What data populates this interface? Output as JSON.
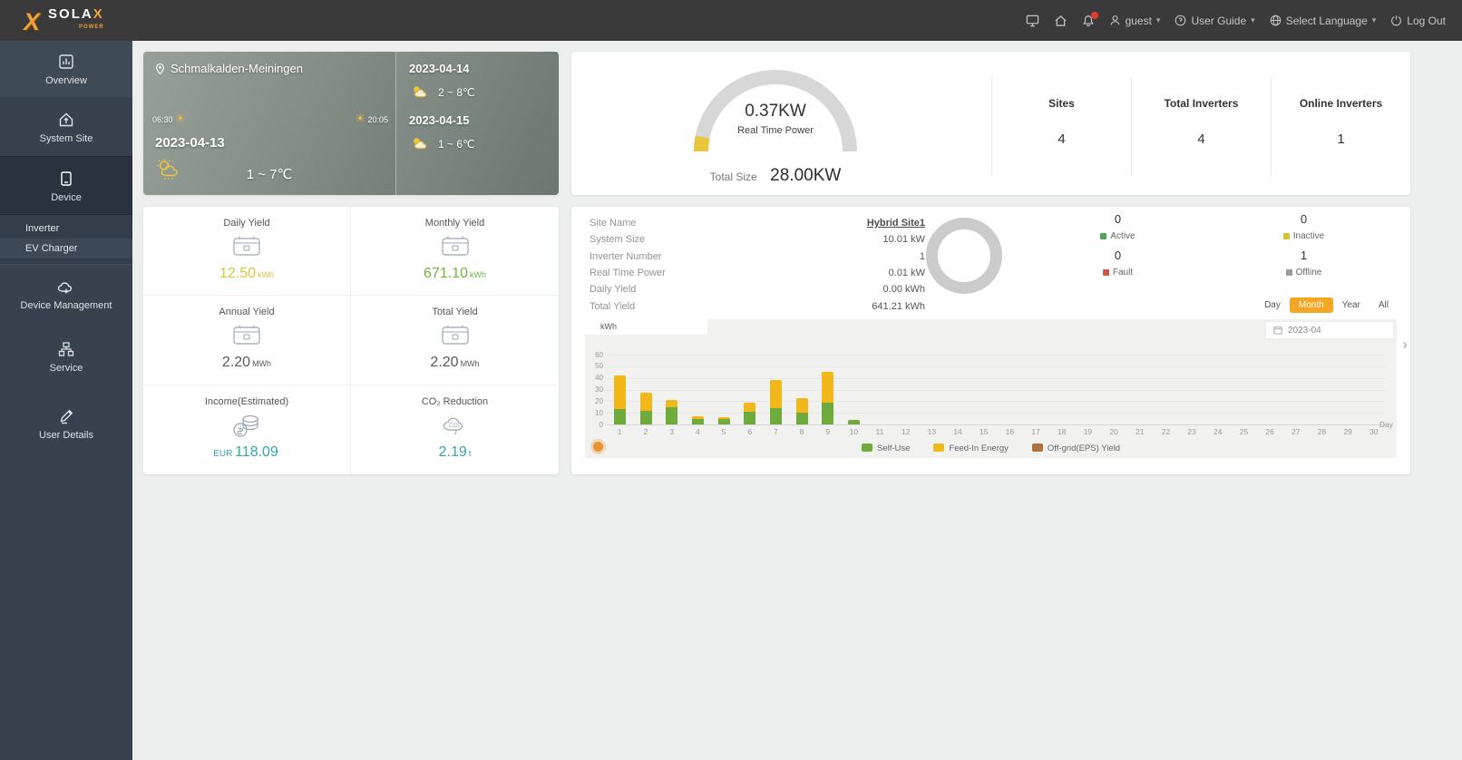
{
  "navbar": {
    "logo_main": "SOLA",
    "logo_x": "X",
    "logo_sub": "POWER",
    "username": "guest",
    "user_guide": "User Guide",
    "select_language": "Select Language",
    "logout": "Log Out"
  },
  "sidebar": {
    "items": [
      {
        "id": "overview",
        "label": "Overview",
        "icon": "overview-icon"
      },
      {
        "id": "system-site",
        "label": "System Site",
        "icon": "site-icon"
      },
      {
        "id": "device",
        "label": "Device",
        "icon": "device-icon",
        "active": true,
        "children": [
          {
            "id": "inverter",
            "label": "Inverter"
          },
          {
            "id": "ev-charger",
            "label": "EV Charger",
            "selected": true
          }
        ]
      },
      {
        "id": "device-management",
        "label": "Device Management",
        "icon": "device-management-icon"
      },
      {
        "id": "service",
        "label": "Service",
        "icon": "service-icon"
      },
      {
        "id": "user-details",
        "label": "User Details",
        "icon": "user-details-icon"
      }
    ]
  },
  "weather": {
    "location": "Schmalkalden-Meiningen",
    "sunrise": "06:30",
    "sunset": "20:05",
    "date": "2023-04-13",
    "temperature": "1 ~ 7℃",
    "forecast": [
      {
        "date": "2023-04-14",
        "temperature": "2 ~ 8℃"
      },
      {
        "date": "2023-04-15",
        "temperature": "1 ~ 6℃"
      }
    ]
  },
  "power_card": {
    "real_time_power": "0.37KW",
    "real_time_power_label": "Real Time Power",
    "total_size_label": "Total Size",
    "total_size": "28.00KW",
    "stats": [
      {
        "label": "Sites",
        "value": "4"
      },
      {
        "label": "Total Inverters",
        "value": "4"
      },
      {
        "label": "Online Inverters",
        "value": "1"
      }
    ]
  },
  "yield_cards": [
    {
      "label": "Daily Yield",
      "value": "12.50",
      "unit": "kWh",
      "color": "#ddc43c",
      "icon": "yield-icon"
    },
    {
      "label": "Monthly Yield",
      "value": "671.10",
      "unit": "kWh",
      "color": "#72b43e",
      "icon": "yield-icon"
    },
    {
      "label": "Annual Yield",
      "value": "2.20",
      "unit": "MWh",
      "color": "#5a5a5a",
      "icon": "yield-icon"
    },
    {
      "label": "Total Yield",
      "value": "2.20",
      "unit": "MWh",
      "color": "#5a5a5a",
      "icon": "yield-icon"
    },
    {
      "label": "Income(Estimated)",
      "prefix": "EUR",
      "value": "118.09",
      "unit": "",
      "color": "#2fa8a4",
      "icon": "income-icon"
    },
    {
      "label": "CO₂ Reduction",
      "value": "2.19",
      "unit": "t",
      "color": "#2fa8a4",
      "icon": "co2-icon"
    }
  ],
  "site_panel": {
    "details": [
      {
        "label": "Site Name",
        "value": "Hybrid Site1",
        "link": true
      },
      {
        "label": "System Size",
        "value": "10.01 kW"
      },
      {
        "label": "Inverter Number",
        "value": "1"
      },
      {
        "label": "Real Time Power",
        "value": "0.01 kW"
      },
      {
        "label": "Daily Yield",
        "value": "0.00 kWh"
      },
      {
        "label": "Total Yield",
        "value": "641.21 kWh"
      }
    ],
    "statuses": [
      {
        "label": "Active",
        "value": "0",
        "color": "#56a556"
      },
      {
        "label": "Inactive",
        "value": "0",
        "color": "#d9c22f"
      },
      {
        "label": "Fault",
        "value": "0",
        "color": "#cf5548"
      },
      {
        "label": "Offline",
        "value": "1",
        "color": "#9b9b9b"
      }
    ],
    "period_buttons": [
      "Day",
      "Month",
      "Year",
      "All"
    ],
    "active_period": "Month",
    "date_value": "2023-04"
  },
  "chart_data": {
    "type": "bar",
    "stacked": true,
    "unit_label": "kWh",
    "xlabel": "Day",
    "ylim": [
      0,
      60
    ],
    "yticks": [
      0,
      10,
      20,
      30,
      40,
      50,
      60
    ],
    "grid": true,
    "legend_position": "bottom",
    "categories": [
      "1",
      "2",
      "3",
      "4",
      "5",
      "6",
      "7",
      "8",
      "9",
      "10",
      "11",
      "12",
      "13",
      "14",
      "15",
      "16",
      "17",
      "18",
      "19",
      "20",
      "21",
      "22",
      "23",
      "24",
      "25",
      "26",
      "27",
      "28",
      "29",
      "30"
    ],
    "series": [
      {
        "name": "Self-Use",
        "color": "#6faa3c",
        "values": [
          13,
          12,
          15,
          5,
          5,
          11,
          14,
          10,
          19,
          4,
          0,
          0,
          0,
          0,
          0,
          0,
          0,
          0,
          0,
          0,
          0,
          0,
          0,
          0,
          0,
          0,
          0,
          0,
          0,
          0
        ]
      },
      {
        "name": "Feed-In Energy",
        "color": "#f2b718",
        "values": [
          29,
          15,
          6,
          2,
          1,
          8,
          24,
          13,
          26,
          0,
          0,
          0,
          0,
          0,
          0,
          0,
          0,
          0,
          0,
          0,
          0,
          0,
          0,
          0,
          0,
          0,
          0,
          0,
          0,
          0
        ]
      },
      {
        "name": "Off-grid(EPS) Yield",
        "color": "#b0713e",
        "values": [
          0,
          0,
          0,
          0,
          0,
          0,
          0,
          0,
          0,
          0,
          0,
          0,
          0,
          0,
          0,
          0,
          0,
          0,
          0,
          0,
          0,
          0,
          0,
          0,
          0,
          0,
          0,
          0,
          0,
          0
        ]
      }
    ]
  },
  "accent_color": "#f5a623"
}
